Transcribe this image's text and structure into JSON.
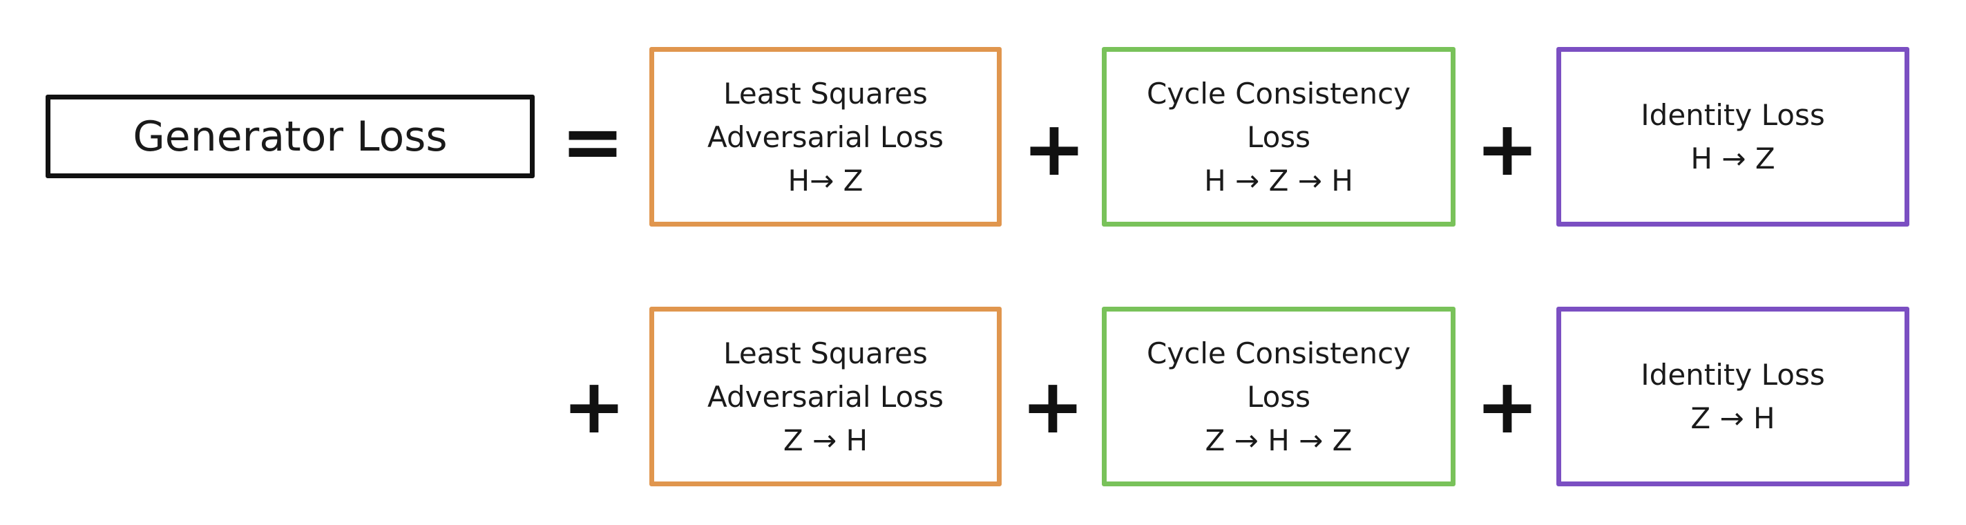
{
  "equation": {
    "lhs": "Generator Loss",
    "equals": "=",
    "plus": "+",
    "row1": [
      {
        "color": "#e0964e",
        "lines": [
          "Least Squares",
          "Adversarial Loss",
          "H→ Z"
        ]
      },
      {
        "color": "#79c25a",
        "lines": [
          "Cycle Consistency",
          "Loss",
          "H → Z → H"
        ]
      },
      {
        "color": "#7b4fc2",
        "lines": [
          "Identity Loss",
          "H → Z"
        ]
      }
    ],
    "row2": [
      {
        "color": "#e0964e",
        "lines": [
          "Least Squares",
          "Adversarial Loss",
          "Z → H"
        ]
      },
      {
        "color": "#79c25a",
        "lines": [
          "Cycle Consistency",
          "Loss",
          "Z → H → Z"
        ]
      },
      {
        "color": "#7b4fc2",
        "lines": [
          "Identity Loss",
          "Z → H"
        ]
      }
    ]
  }
}
